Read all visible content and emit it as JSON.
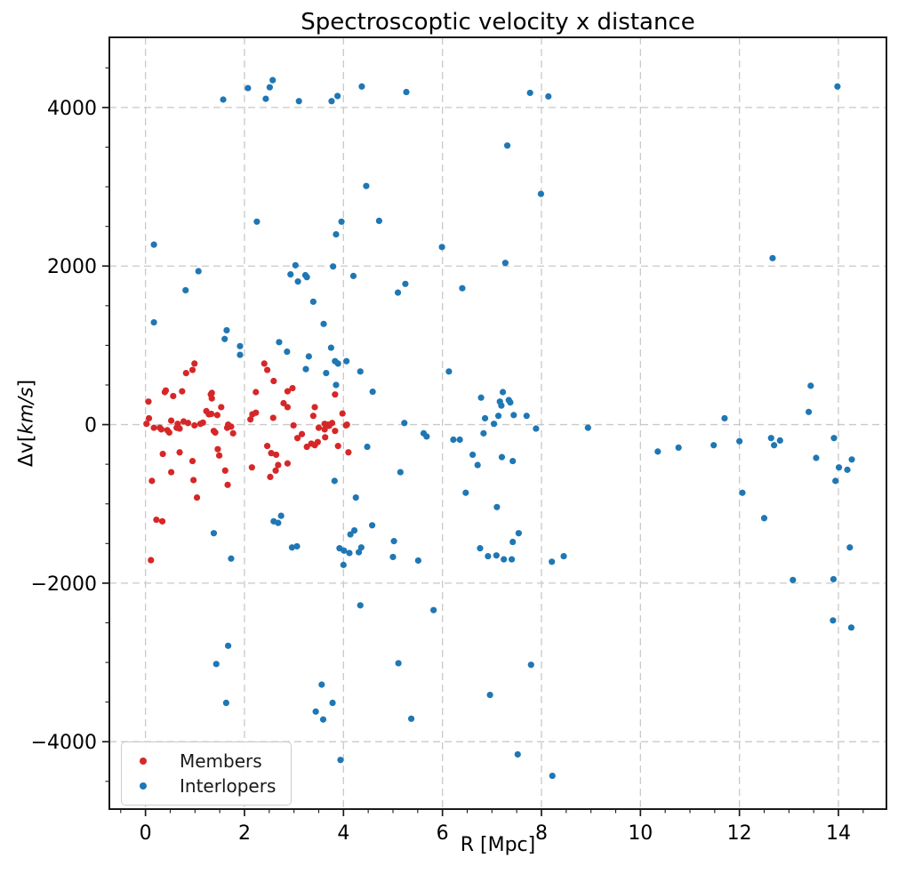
{
  "figure": {
    "background": "#ffffff"
  },
  "chart_data": {
    "type": "scatter",
    "title": "Spectroscoptic velocity x distance",
    "xlabel": "R [Mpc]",
    "ylabel": "Δv[km/s]",
    "ylabel_parts": {
      "prefix": "Δv[",
      "math": "km/s",
      "suffix": "]"
    },
    "xlim": [
      -0.73,
      14.97
    ],
    "ylim": [
      -4850,
      4885
    ],
    "xticks": [
      0,
      2,
      4,
      6,
      8,
      10,
      12,
      14
    ],
    "yticks": [
      -4000,
      -2000,
      0,
      2000,
      4000
    ],
    "minor_x_step": 0.5,
    "minor_y_step": 500,
    "grid": {
      "on": true,
      "style": "dashed",
      "color": "#c9c9c9"
    },
    "axes_color": "#1a1a1a",
    "marker": {
      "shape": "circle",
      "radius": 3.6
    },
    "legend": {
      "position": "lower left",
      "entries": [
        {
          "label": "Members",
          "color": "#d62728"
        },
        {
          "label": "Interlopers",
          "color": "#1f77b4"
        }
      ]
    },
    "series": [
      {
        "name": "Members",
        "color": "#d62728",
        "points": [
          [
            0.02,
            10
          ],
          [
            0.06,
            290
          ],
          [
            0.07,
            80
          ],
          [
            0.11,
            -1710
          ],
          [
            0.13,
            -710
          ],
          [
            0.17,
            -40
          ],
          [
            0.22,
            -1200
          ],
          [
            0.29,
            -40
          ],
          [
            0.32,
            -60
          ],
          [
            0.34,
            -1220
          ],
          [
            0.35,
            -370
          ],
          [
            0.39,
            410
          ],
          [
            0.41,
            430
          ],
          [
            0.44,
            -70
          ],
          [
            0.48,
            -100
          ],
          [
            0.52,
            50
          ],
          [
            0.52,
            -600
          ],
          [
            0.56,
            360
          ],
          [
            0.63,
            -40
          ],
          [
            0.65,
            10
          ],
          [
            0.69,
            -350
          ],
          [
            0.69,
            -50
          ],
          [
            0.74,
            420
          ],
          [
            0.77,
            40
          ],
          [
            0.82,
            650
          ],
          [
            0.86,
            20
          ],
          [
            0.95,
            690
          ],
          [
            0.95,
            -460
          ],
          [
            0.97,
            -700
          ],
          [
            0.99,
            770
          ],
          [
            0.99,
            -10
          ],
          [
            1.04,
            -920
          ],
          [
            1.11,
            10
          ],
          [
            1.16,
            25
          ],
          [
            1.23,
            170
          ],
          [
            1.28,
            130
          ],
          [
            1.32,
            380
          ],
          [
            1.33,
            135
          ],
          [
            1.34,
            330
          ],
          [
            1.34,
            400
          ],
          [
            1.38,
            -80
          ],
          [
            1.41,
            -100
          ],
          [
            1.45,
            120
          ],
          [
            1.46,
            -310
          ],
          [
            1.49,
            -390
          ],
          [
            1.53,
            220
          ],
          [
            1.61,
            -580
          ],
          [
            1.65,
            -40
          ],
          [
            1.66,
            -760
          ],
          [
            1.67,
            0
          ],
          [
            1.73,
            -25
          ],
          [
            1.77,
            -110
          ],
          [
            2.12,
            65
          ],
          [
            2.15,
            -540
          ],
          [
            2.16,
            130
          ],
          [
            2.23,
            410
          ],
          [
            2.23,
            150
          ],
          [
            2.4,
            770
          ],
          [
            2.46,
            690
          ],
          [
            2.46,
            -270
          ],
          [
            2.52,
            -660
          ],
          [
            2.54,
            -360
          ],
          [
            2.58,
            85
          ],
          [
            2.59,
            550
          ],
          [
            2.63,
            -580
          ],
          [
            2.64,
            -380
          ],
          [
            2.68,
            -510
          ],
          [
            2.79,
            270
          ],
          [
            2.87,
            220
          ],
          [
            2.87,
            420
          ],
          [
            2.87,
            -490
          ],
          [
            2.97,
            460
          ],
          [
            2.99,
            -10
          ],
          [
            3.07,
            -170
          ],
          [
            3.16,
            -120
          ],
          [
            3.26,
            -280
          ],
          [
            3.35,
            -240
          ],
          [
            3.39,
            110
          ],
          [
            3.42,
            220
          ],
          [
            3.42,
            -260
          ],
          [
            3.48,
            -220
          ],
          [
            3.5,
            -40
          ],
          [
            3.62,
            -60
          ],
          [
            3.62,
            10
          ],
          [
            3.63,
            -160
          ],
          [
            3.69,
            0
          ],
          [
            3.71,
            -15
          ],
          [
            3.77,
            20
          ],
          [
            3.83,
            380
          ],
          [
            3.83,
            -80
          ],
          [
            3.89,
            -270
          ],
          [
            3.98,
            140
          ],
          [
            4.05,
            -10
          ],
          [
            4.07,
            0
          ],
          [
            4.1,
            -350
          ]
        ]
      },
      {
        "name": "Interlopers",
        "color": "#1f77b4",
        "points": [
          [
            1.57,
            4100
          ],
          [
            2.07,
            4245
          ],
          [
            2.43,
            4110
          ],
          [
            2.51,
            4255
          ],
          [
            2.57,
            4345
          ],
          [
            3.1,
            4080
          ],
          [
            3.76,
            4080
          ],
          [
            3.88,
            4145
          ],
          [
            4.37,
            4265
          ],
          [
            5.27,
            4195
          ],
          [
            7.77,
            4185
          ],
          [
            8.14,
            4140
          ],
          [
            13.98,
            4265
          ],
          [
            7.31,
            3520
          ],
          [
            4.46,
            3010
          ],
          [
            7.99,
            2910
          ],
          [
            2.25,
            2560
          ],
          [
            3.96,
            2560
          ],
          [
            3.85,
            2400
          ],
          [
            4.72,
            2570
          ],
          [
            5.99,
            2240
          ],
          [
            0.17,
            2270
          ],
          [
            1.07,
            1935
          ],
          [
            3.03,
            2010
          ],
          [
            2.93,
            1895
          ],
          [
            3.08,
            1805
          ],
          [
            3.23,
            1885
          ],
          [
            3.26,
            1860
          ],
          [
            3.79,
            1995
          ],
          [
            4.2,
            1875
          ],
          [
            7.27,
            2040
          ],
          [
            5.25,
            1775
          ],
          [
            5.1,
            1665
          ],
          [
            6.4,
            1720
          ],
          [
            12.67,
            2100
          ],
          [
            0.81,
            1695
          ],
          [
            0.17,
            1290
          ],
          [
            1.64,
            1190
          ],
          [
            1.6,
            1080
          ],
          [
            1.91,
            990
          ],
          [
            1.91,
            880
          ],
          [
            3.39,
            1550
          ],
          [
            3.6,
            1270
          ],
          [
            2.7,
            1040
          ],
          [
            2.86,
            920
          ],
          [
            3.75,
            970
          ],
          [
            3.3,
            860
          ],
          [
            3.83,
            800
          ],
          [
            3.89,
            770
          ],
          [
            4.06,
            800
          ],
          [
            3.24,
            700
          ],
          [
            3.65,
            650
          ],
          [
            4.34,
            670
          ],
          [
            3.85,
            500
          ],
          [
            4.59,
            415
          ],
          [
            6.13,
            670
          ],
          [
            6.78,
            340
          ],
          [
            7.22,
            410
          ],
          [
            7.16,
            290
          ],
          [
            7.19,
            240
          ],
          [
            7.34,
            310
          ],
          [
            7.37,
            280
          ],
          [
            6.86,
            80
          ],
          [
            7.13,
            110
          ],
          [
            7.44,
            120
          ],
          [
            7.7,
            110
          ],
          [
            7.04,
            10
          ],
          [
            5.23,
            20
          ],
          [
            7.89,
            -50
          ],
          [
            8.94,
            -40
          ],
          [
            5.62,
            -110
          ],
          [
            5.68,
            -150
          ],
          [
            6.22,
            -190
          ],
          [
            6.35,
            -190
          ],
          [
            6.83,
            -110
          ],
          [
            6.61,
            -380
          ],
          [
            6.71,
            -510
          ],
          [
            7.2,
            -410
          ],
          [
            7.42,
            -460
          ],
          [
            5.15,
            -600
          ],
          [
            6.47,
            -860
          ],
          [
            7.1,
            -1040
          ],
          [
            5.02,
            -1470
          ],
          [
            7.54,
            -1370
          ],
          [
            7.42,
            -1480
          ],
          [
            6.76,
            -1560
          ],
          [
            4.48,
            -280
          ],
          [
            3.82,
            -710
          ],
          [
            4.25,
            -920
          ],
          [
            2.74,
            -1150
          ],
          [
            2.59,
            -1220
          ],
          [
            2.68,
            -1240
          ],
          [
            4.22,
            -1335
          ],
          [
            4.14,
            -1385
          ],
          [
            4.58,
            -1270
          ],
          [
            1.38,
            -1370
          ],
          [
            2.96,
            -1550
          ],
          [
            3.06,
            -1535
          ],
          [
            3.92,
            -1560
          ],
          [
            4.01,
            -1590
          ],
          [
            4.12,
            -1620
          ],
          [
            4.31,
            -1610
          ],
          [
            4.36,
            -1550
          ],
          [
            4.0,
            -1770
          ],
          [
            1.73,
            -1690
          ],
          [
            4.34,
            -2280
          ],
          [
            1.67,
            -2790
          ],
          [
            1.43,
            -3020
          ],
          [
            1.63,
            -3510
          ],
          [
            3.56,
            -3280
          ],
          [
            3.78,
            -3510
          ],
          [
            3.44,
            -3620
          ],
          [
            3.59,
            -3720
          ],
          [
            3.94,
            -4230
          ],
          [
            5.0,
            -1670
          ],
          [
            5.51,
            -1715
          ],
          [
            6.92,
            -1660
          ],
          [
            7.09,
            -1650
          ],
          [
            7.24,
            -1700
          ],
          [
            7.4,
            -1700
          ],
          [
            8.21,
            -1730
          ],
          [
            8.45,
            -1660
          ],
          [
            5.82,
            -2340
          ],
          [
            5.11,
            -3010
          ],
          [
            7.79,
            -3030
          ],
          [
            6.96,
            -3410
          ],
          [
            5.37,
            -3710
          ],
          [
            7.52,
            -4160
          ],
          [
            8.22,
            -4430
          ],
          [
            11.7,
            80
          ],
          [
            13.44,
            490
          ],
          [
            13.4,
            160
          ],
          [
            10.35,
            -340
          ],
          [
            10.77,
            -290
          ],
          [
            11.48,
            -260
          ],
          [
            12.0,
            -210
          ],
          [
            12.64,
            -170
          ],
          [
            12.7,
            -260
          ],
          [
            12.82,
            -200
          ],
          [
            13.91,
            -170
          ],
          [
            13.55,
            -420
          ],
          [
            14.27,
            -440
          ],
          [
            14.01,
            -540
          ],
          [
            14.18,
            -570
          ],
          [
            13.94,
            -710
          ],
          [
            12.06,
            -860
          ],
          [
            12.5,
            -1180
          ],
          [
            14.23,
            -1550
          ],
          [
            13.08,
            -1960
          ],
          [
            13.9,
            -1950
          ],
          [
            13.89,
            -2470
          ],
          [
            14.26,
            -2560
          ]
        ]
      }
    ]
  }
}
